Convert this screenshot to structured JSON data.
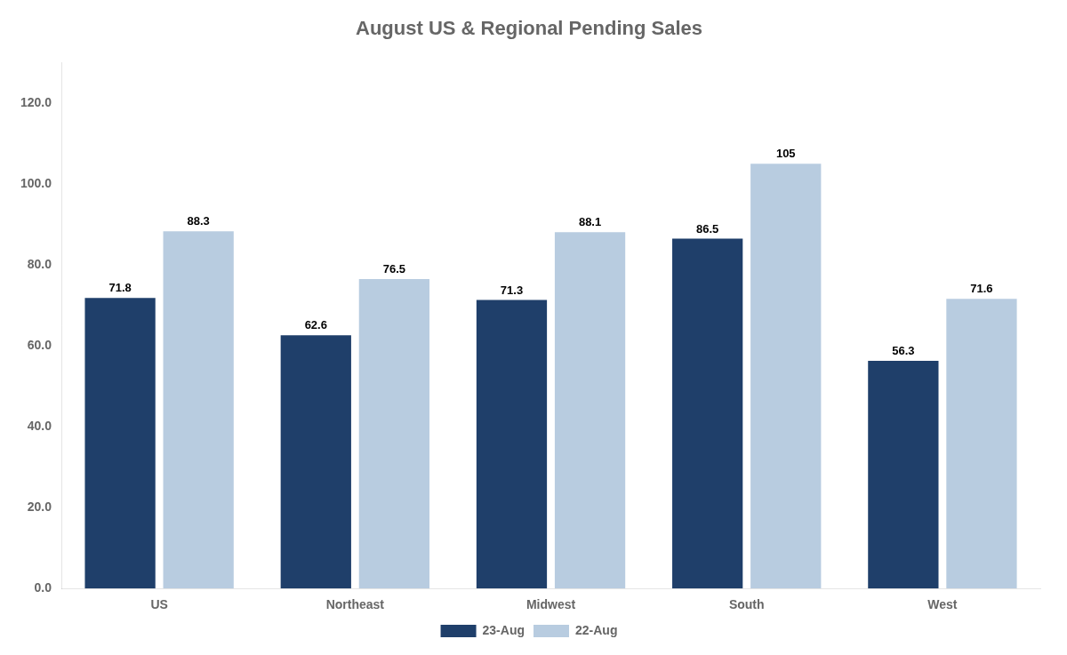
{
  "chart_data": {
    "type": "bar",
    "title": "August US & Regional Pending Sales",
    "categories": [
      "US",
      "Northeast",
      "Midwest",
      "South",
      "West"
    ],
    "series": [
      {
        "name": "23-Aug",
        "color": "#1F3F6A",
        "values": [
          71.8,
          62.6,
          71.3,
          86.5,
          56.3
        ]
      },
      {
        "name": "22-Aug",
        "color": "#B8CCE0",
        "values": [
          88.3,
          76.5,
          88.1,
          105.0,
          71.6
        ]
      }
    ],
    "ylim": [
      0,
      130
    ],
    "yticks": [
      {
        "value": 0,
        "label": "0.0"
      },
      {
        "value": 20,
        "label": "20.0"
      },
      {
        "value": 40,
        "label": "40.0"
      },
      {
        "value": 60,
        "label": "60.0"
      },
      {
        "value": 80,
        "label": "80.0"
      },
      {
        "value": 100,
        "label": "100.0"
      },
      {
        "value": 120,
        "label": "120.0"
      }
    ],
    "grid": false,
    "legend": "bottom",
    "data_labels": true
  }
}
